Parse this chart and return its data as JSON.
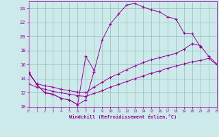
{
  "xlabel": "Windchill (Refroidissement éolien,°C)",
  "xlim": [
    0,
    23
  ],
  "ylim": [
    10,
    25
  ],
  "xticks": [
    0,
    1,
    2,
    3,
    4,
    5,
    6,
    7,
    8,
    9,
    10,
    11,
    12,
    13,
    14,
    15,
    16,
    17,
    18,
    19,
    20,
    21,
    22,
    23
  ],
  "yticks": [
    10,
    12,
    14,
    16,
    18,
    20,
    22,
    24
  ],
  "bg_color": "#cceaea",
  "line_color": "#990099",
  "grid_color": "#99bbbb",
  "line1_x": [
    0,
    1,
    2,
    3,
    4,
    5,
    6,
    7,
    8
  ],
  "line1_y": [
    15.0,
    13.2,
    12.0,
    11.8,
    11.2,
    11.0,
    10.3,
    17.2,
    15.2
  ],
  "line2_x": [
    0,
    1,
    2,
    3,
    4,
    5,
    6,
    7,
    8,
    9,
    10,
    11,
    12,
    13,
    14,
    15,
    16,
    17,
    18,
    19,
    20,
    21
  ],
  "line2_y": [
    15.0,
    13.2,
    12.0,
    11.8,
    11.2,
    11.0,
    10.3,
    11.0,
    15.0,
    19.5,
    21.8,
    23.2,
    24.5,
    24.7,
    24.2,
    23.8,
    23.5,
    22.8,
    22.5,
    20.5,
    20.4,
    18.5
  ],
  "line3_x": [
    0,
    1,
    2,
    3,
    4,
    5,
    6,
    7,
    8,
    9,
    10,
    11,
    12,
    13,
    14,
    15,
    16,
    17,
    18,
    19,
    20,
    21,
    22,
    23
  ],
  "line3_y": [
    14.8,
    13.3,
    13.0,
    12.8,
    12.5,
    12.3,
    12.1,
    12.0,
    12.8,
    13.5,
    14.2,
    14.7,
    15.3,
    15.8,
    16.3,
    16.7,
    17.0,
    17.3,
    17.6,
    18.2,
    19.0,
    18.7,
    17.2,
    16.1
  ],
  "line4_x": [
    0,
    1,
    2,
    3,
    4,
    5,
    6,
    7,
    8,
    9,
    10,
    11,
    12,
    13,
    14,
    15,
    16,
    17,
    18,
    19,
    20,
    21,
    22,
    23
  ],
  "line4_y": [
    13.3,
    12.8,
    12.5,
    12.2,
    12.0,
    11.8,
    11.6,
    11.5,
    11.9,
    12.3,
    12.8,
    13.2,
    13.6,
    14.0,
    14.4,
    14.8,
    15.1,
    15.5,
    15.8,
    16.1,
    16.4,
    16.6,
    16.9,
    16.0
  ]
}
